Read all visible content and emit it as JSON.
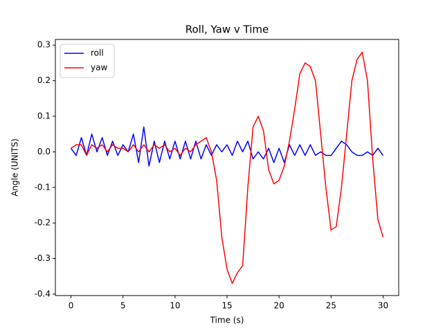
{
  "chart_data": {
    "type": "line",
    "title": "Roll, Yaw v Time",
    "x_label": "Time (s)",
    "y_label": "Angle (UNITS)",
    "x": [
      0,
      0.5,
      1,
      1.5,
      2,
      2.5,
      3,
      3.5,
      4,
      4.5,
      5,
      5.5,
      6,
      6.5,
      7,
      7.5,
      8,
      8.5,
      9,
      9.5,
      10,
      10.5,
      11,
      11.5,
      12,
      12.5,
      13,
      13.5,
      14,
      14.5,
      15,
      15.5,
      16,
      16.5,
      17,
      17.5,
      18,
      18.5,
      19,
      19.5,
      20,
      20.5,
      21,
      21.5,
      22,
      22.5,
      23,
      23.5,
      24,
      24.5,
      25,
      25.5,
      26,
      26.5,
      27,
      27.5,
      28,
      28.5,
      29,
      29.5,
      30
    ],
    "series": [
      {
        "name": "roll",
        "color": "#0000ff",
        "values": [
          0.01,
          -0.01,
          0.04,
          -0.01,
          0.05,
          0.0,
          0.04,
          -0.01,
          0.03,
          -0.01,
          0.02,
          0.0,
          0.05,
          -0.03,
          0.07,
          -0.04,
          0.03,
          -0.03,
          0.03,
          -0.02,
          0.03,
          -0.02,
          0.03,
          -0.02,
          0.03,
          -0.02,
          0.02,
          -0.01,
          0.02,
          0.0,
          0.02,
          -0.01,
          0.03,
          0.0,
          0.03,
          -0.02,
          0.0,
          -0.02,
          0.01,
          -0.03,
          0.01,
          -0.03,
          0.02,
          -0.01,
          0.02,
          -0.01,
          0.02,
          -0.01,
          0.0,
          -0.01,
          -0.01,
          0.01,
          0.03,
          0.02,
          0.0,
          -0.01,
          -0.01,
          0.0,
          -0.01,
          0.01,
          -0.01
        ]
      },
      {
        "name": "yaw",
        "color": "#ff0000",
        "values": [
          0.01,
          0.02,
          0.02,
          -0.01,
          0.02,
          0.01,
          0.02,
          0.0,
          0.02,
          0.01,
          0.01,
          0.0,
          0.02,
          0.0,
          0.02,
          0.0,
          0.02,
          0.01,
          0.02,
          0.0,
          0.01,
          -0.01,
          0.01,
          0.0,
          0.02,
          0.03,
          0.04,
          0.0,
          -0.08,
          -0.24,
          -0.33,
          -0.37,
          -0.34,
          -0.32,
          -0.1,
          0.07,
          0.1,
          0.06,
          -0.05,
          -0.09,
          -0.08,
          -0.04,
          0.03,
          0.12,
          0.22,
          0.25,
          0.24,
          0.2,
          0.05,
          -0.1,
          -0.22,
          -0.21,
          -0.1,
          0.05,
          0.2,
          0.26,
          0.28,
          0.2,
          -0.02,
          -0.19,
          -0.24
        ]
      }
    ],
    "xlim": [
      -1.5,
      31.5
    ],
    "ylim": [
      -0.404,
      0.316
    ],
    "xticks": [
      0,
      5,
      10,
      15,
      20,
      25,
      30
    ],
    "yticks": [
      -0.4,
      -0.3,
      -0.2,
      -0.1,
      {
        "value": 0,
        "label": "0.0"
      },
      0.1,
      0.2,
      0.3
    ],
    "legend": "upper left"
  }
}
